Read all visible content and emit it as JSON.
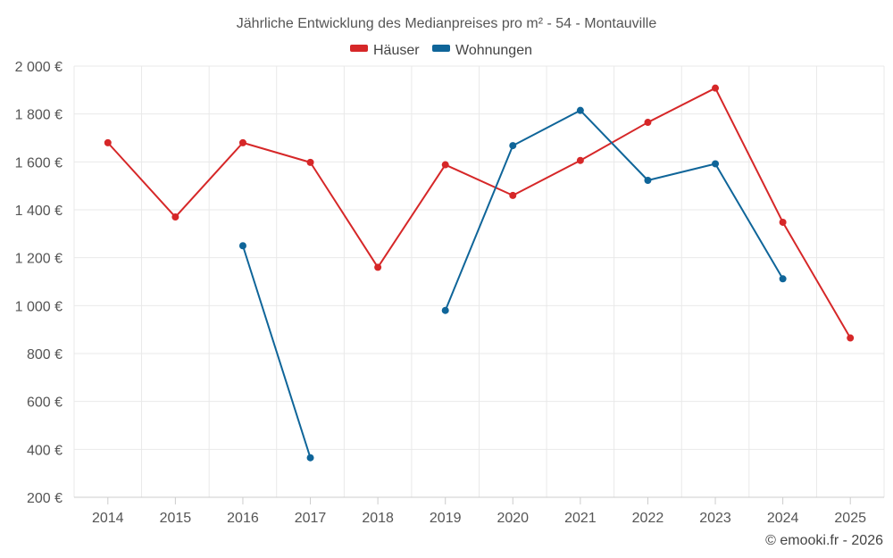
{
  "chart_data": {
    "type": "line",
    "title": "Jährliche Entwicklung des Medianpreises pro m² - 54 - Montauville",
    "categories": [
      "2014",
      "2015",
      "2016",
      "2017",
      "2018",
      "2019",
      "2020",
      "2021",
      "2022",
      "2023",
      "2024",
      "2025"
    ],
    "series": [
      {
        "name": "Häuser",
        "color": "#d62728",
        "values": [
          1680,
          1370,
          1680,
          1598,
          1160,
          1588,
          1460,
          1606,
          1765,
          1908,
          1348,
          865
        ]
      },
      {
        "name": "Wohnungen",
        "color": "#0f6599",
        "values": [
          null,
          null,
          1250,
          365,
          null,
          980,
          1668,
          1815,
          1523,
          1592,
          1112,
          null
        ]
      }
    ],
    "ylim": [
      200,
      2000
    ],
    "yticks": [
      200,
      400,
      600,
      800,
      1000,
      1200,
      1400,
      1600,
      1800,
      2000
    ],
    "ytick_labels": [
      "200 €",
      "400 €",
      "600 €",
      "800 €",
      "1 000 €",
      "1 200 €",
      "1 400 €",
      "1 600 €",
      "1 800 €",
      "2 000 €"
    ],
    "xlabel": "",
    "ylabel": "",
    "legend_position": "top-center",
    "grid": true
  },
  "credit": "© emooki.fr - 2026"
}
